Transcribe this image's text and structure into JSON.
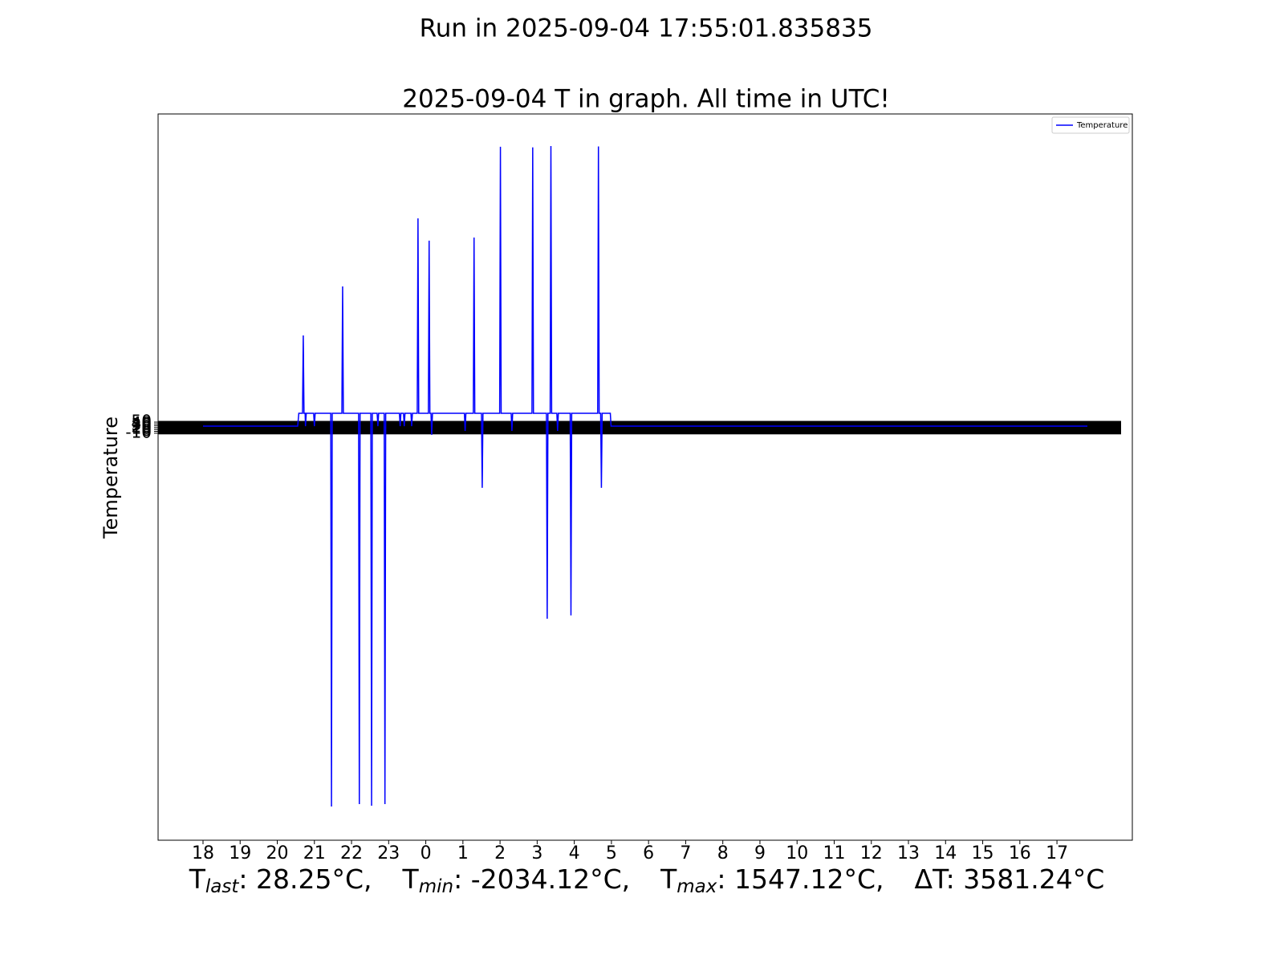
{
  "chart_data": {
    "type": "line",
    "suptitle": "Run in 2025-09-04 17:55:01.835835",
    "title": "2025-09-04 T in graph. All time in UTC!",
    "y_label": "Temperature",
    "legend": "upper right",
    "grid": true,
    "xlim": [
      -1.21,
      25.03
    ],
    "xticks": [
      {
        "value": 0,
        "label": "18"
      },
      {
        "value": 1,
        "label": "19"
      },
      {
        "value": 2,
        "label": "20"
      },
      {
        "value": 3,
        "label": "21"
      },
      {
        "value": 4,
        "label": "22"
      },
      {
        "value": 5,
        "label": "23"
      },
      {
        "value": 6,
        "label": "0"
      },
      {
        "value": 7,
        "label": "1"
      },
      {
        "value": 8,
        "label": "2"
      },
      {
        "value": 9,
        "label": "3"
      },
      {
        "value": 10,
        "label": "4"
      },
      {
        "value": 11,
        "label": "5"
      },
      {
        "value": 12,
        "label": "6"
      },
      {
        "value": 13,
        "label": "7"
      },
      {
        "value": 14,
        "label": "8"
      },
      {
        "value": 15,
        "label": "9"
      },
      {
        "value": 16,
        "label": "10"
      },
      {
        "value": 17,
        "label": "11"
      },
      {
        "value": 18,
        "label": "12"
      },
      {
        "value": 19,
        "label": "13"
      },
      {
        "value": 20,
        "label": "14"
      },
      {
        "value": 21,
        "label": "15"
      },
      {
        "value": 22,
        "label": "16"
      },
      {
        "value": 23,
        "label": "17"
      }
    ],
    "ylim": [
      -2217,
      1721
    ],
    "yticks": [
      -10,
      0,
      10,
      20,
      30,
      40,
      50
    ],
    "x": [
      0,
      2.55,
      2.58,
      2.68,
      2.7,
      2.72,
      2.75,
      2.76,
      2.78,
      2.98,
      3.0,
      3.02,
      3.44,
      3.46,
      3.48,
      3.74,
      3.76,
      3.78,
      4.19,
      4.21,
      4.23,
      4.52,
      4.54,
      4.56,
      4.69,
      4.71,
      4.73,
      4.88,
      4.9,
      4.92,
      5.29,
      5.31,
      5.33,
      5.4,
      5.42,
      5.44,
      5.6,
      5.62,
      5.64,
      5.77,
      5.79,
      5.81,
      6.07,
      6.09,
      6.11,
      6.14,
      6.16,
      6.18,
      7.04,
      7.06,
      7.08,
      7.28,
      7.3,
      7.32,
      7.5,
      7.52,
      7.54,
      7.99,
      8.01,
      8.03,
      8.3,
      8.32,
      8.34,
      8.86,
      8.88,
      8.9,
      9.25,
      9.27,
      9.29,
      9.35,
      9.37,
      9.39,
      9.53,
      9.55,
      9.57,
      9.89,
      9.91,
      9.93,
      10.63,
      10.65,
      10.67,
      10.71,
      10.73,
      10.75,
      10.97,
      10.99,
      23.82
    ],
    "series": [
      {
        "name": "Temperature",
        "color": "#0000ff",
        "values": [
          28.25,
          28.25,
          98,
          98,
          520,
          98,
          98,
          28,
          98,
          98,
          28,
          98,
          98,
          -2034.12,
          98,
          98,
          786,
          98,
          98,
          -2021,
          98,
          98,
          -2030,
          98,
          98,
          28,
          98,
          98,
          -2021,
          98,
          98,
          28,
          98,
          98,
          28,
          98,
          98,
          28,
          98,
          98,
          1155,
          98,
          98,
          1034,
          98,
          98,
          -19,
          98,
          98,
          2.5,
          98,
          98,
          1051,
          98,
          98,
          -306,
          98,
          98,
          1543,
          98,
          98,
          2.5,
          98,
          98,
          1540,
          98,
          98,
          -1016,
          98,
          98,
          1547.12,
          98,
          98,
          2.5,
          98,
          98,
          -998,
          98,
          98,
          1545,
          98,
          98,
          -306,
          98,
          98,
          28.25,
          28.25
        ]
      }
    ],
    "stats": [
      {
        "name": "T",
        "sub": "last",
        "text": ": 28.25°C,"
      },
      {
        "name": "T",
        "sub": "min",
        "text": ": -2034.12°C,"
      },
      {
        "name": "T",
        "sub": "max",
        "text": ": 1547.12°C,"
      },
      {
        "name": "ΔT",
        "text": ": 3581.24°C"
      }
    ]
  }
}
